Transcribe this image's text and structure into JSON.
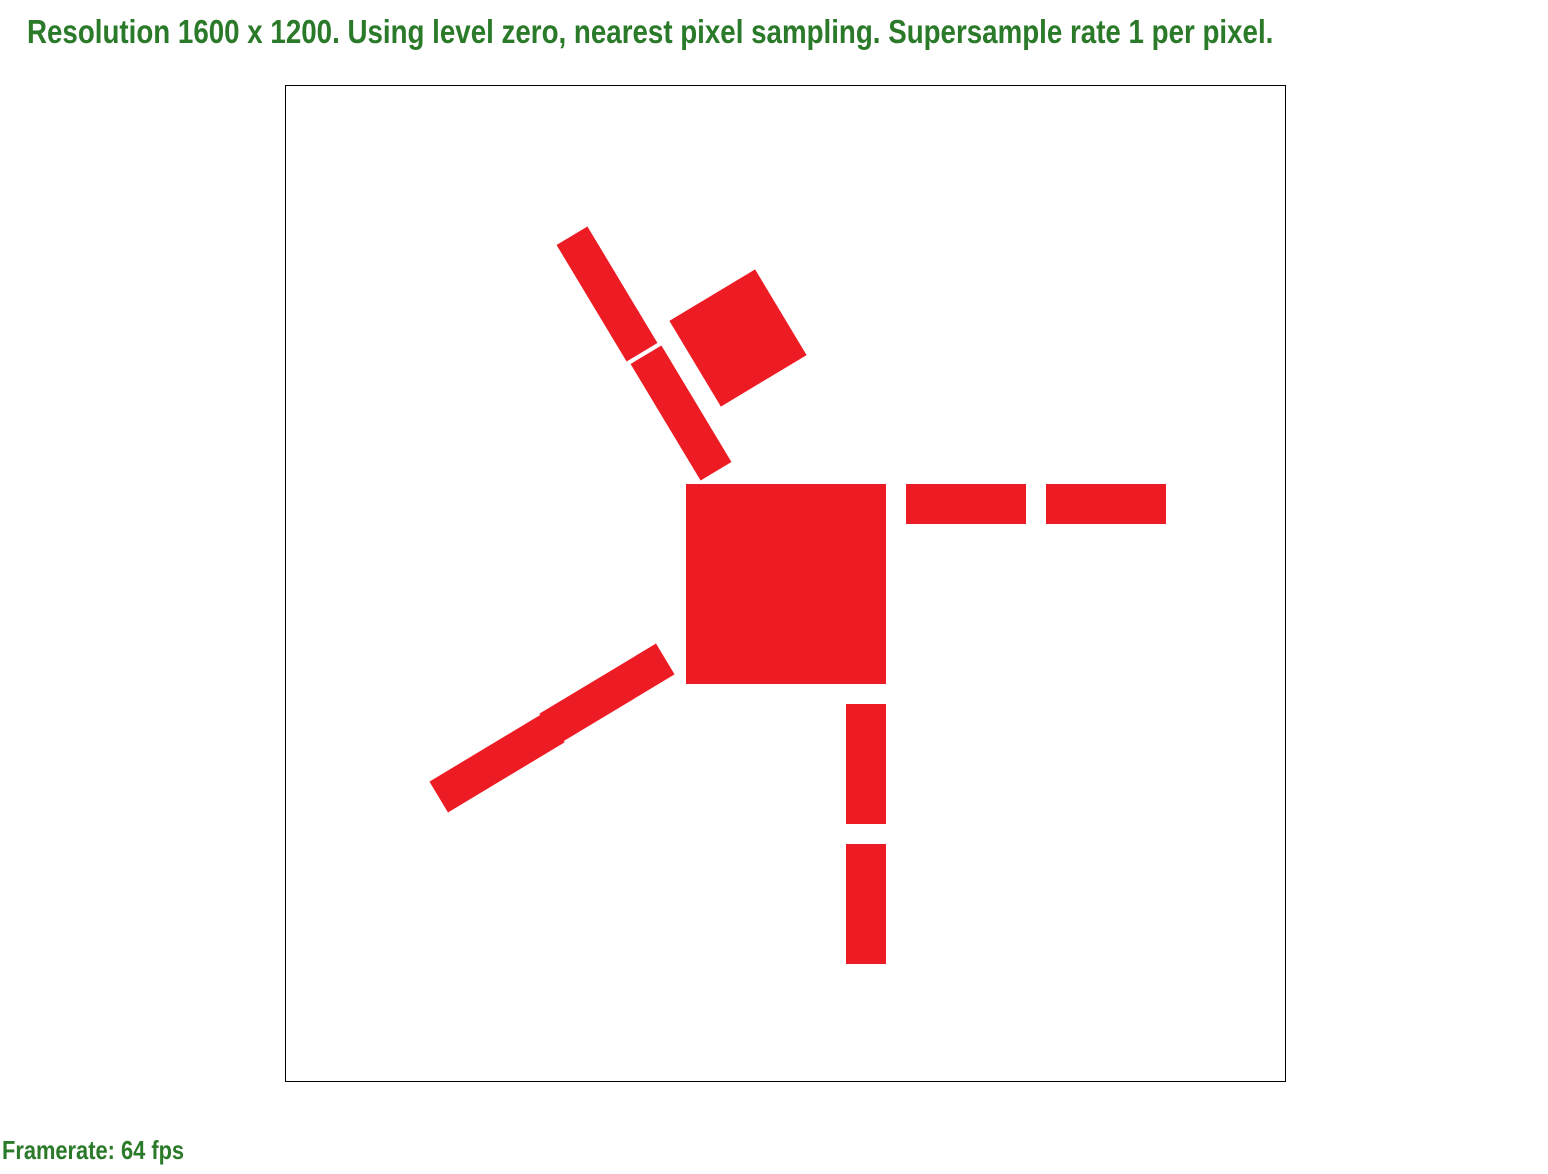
{
  "header": {
    "resolution_text": "Resolution 1600 x 1200. Using level zero, nearest pixel sampling. Supersample rate 1 per pixel."
  },
  "footer": {
    "framerate_text": "Framerate: 64 fps"
  },
  "colors": {
    "status_text": "#2a7a2a",
    "shape_fill": "#ed1c24",
    "canvas_background": "#ffffff",
    "canvas_border": "#000000"
  }
}
